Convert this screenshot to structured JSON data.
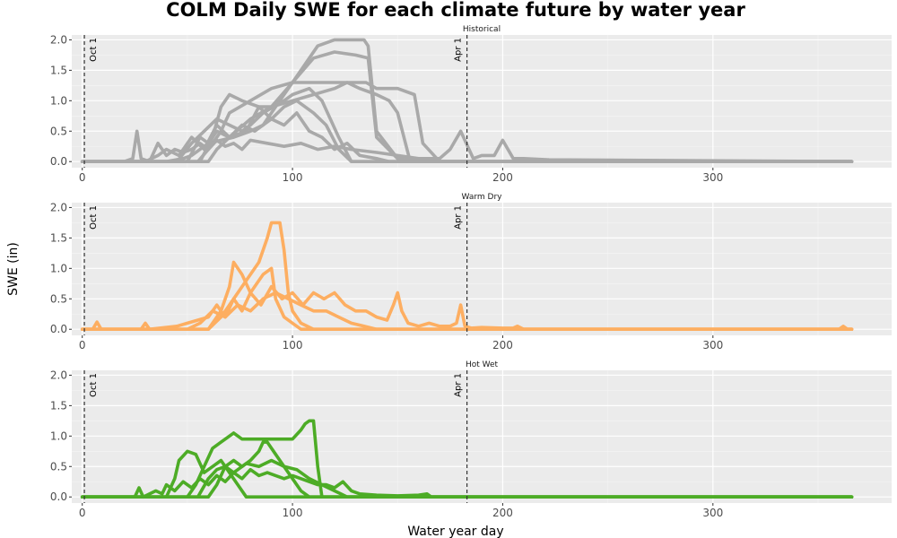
{
  "chart_data": {
    "type": "line",
    "title": "COLM Daily SWE for each climate future by water year",
    "xlabel": "Water year day",
    "ylabel": "SWE (in)",
    "xlim": [
      -5,
      385
    ],
    "ylim": [
      -0.1,
      2.08
    ],
    "x_ticks": [
      0,
      100,
      200,
      300
    ],
    "y_ticks": [
      "0.0",
      "0.5",
      "1.0",
      "1.5",
      "2.0"
    ],
    "grid": true,
    "vlines": [
      {
        "x": 1,
        "label": "Oct 1"
      },
      {
        "x": 183,
        "label": "Apr 1"
      }
    ],
    "panels": [
      {
        "strip": "Historical",
        "color": "#a9a9a9",
        "series": [
          {
            "x": [
              0,
              40,
              48,
              52,
              56,
              60,
              66,
              72,
              80,
              86,
              90,
              96,
              104,
              112,
              120,
              130,
              134,
              136,
              140,
              150,
              160,
              170,
              180,
              185,
              200,
              366
            ],
            "y": [
              0,
              0,
              0.05,
              0.1,
              0.2,
              0.3,
              0.35,
              0.4,
              0.5,
              0.6,
              0.8,
              1.1,
              1.5,
              1.9,
              2.0,
              2.0,
              2.0,
              1.9,
              0.5,
              0.05,
              0,
              0,
              0,
              0,
              0,
              0
            ]
          },
          {
            "x": [
              0,
              60,
              64,
              70,
              80,
              90,
              100,
              110,
              120,
              130,
              136,
              140,
              150,
              160,
              366
            ],
            "y": [
              0,
              0,
              0.2,
              0.4,
              0.7,
              0.9,
              1.3,
              1.7,
              1.8,
              1.75,
              1.7,
              0.4,
              0.05,
              0,
              0
            ]
          },
          {
            "x": [
              0,
              55,
              60,
              66,
              70,
              80,
              90,
              100,
              110,
              120,
              130,
              135,
              140,
              150,
              158,
              162,
              170,
              366
            ],
            "y": [
              0,
              0,
              0.2,
              0.5,
              0.8,
              1.0,
              1.2,
              1.3,
              1.3,
              1.3,
              1.3,
              1.3,
              1.2,
              1.2,
              1.1,
              0.3,
              0,
              0
            ]
          },
          {
            "x": [
              0,
              56,
              62,
              66,
              70,
              76,
              84,
              90,
              100,
              110,
              120,
              126,
              132,
              140,
              146,
              150,
              156,
              366
            ],
            "y": [
              0,
              0,
              0.4,
              0.9,
              1.1,
              1.0,
              0.9,
              0.9,
              1.0,
              1.1,
              1.2,
              1.3,
              1.2,
              1.1,
              1.0,
              0.8,
              0,
              0
            ]
          },
          {
            "x": [
              0,
              45,
              52,
              58,
              64,
              70,
              76,
              80,
              86,
              96,
              100,
              108,
              114,
              118,
              122,
              128,
              366
            ],
            "y": [
              0,
              0,
              0.3,
              0.5,
              0.7,
              0.6,
              0.5,
              0.6,
              0.8,
              1.0,
              1.1,
              1.2,
              1.0,
              0.7,
              0.4,
              0,
              0
            ]
          },
          {
            "x": [
              0,
              50,
              56,
              60,
              64,
              70,
              76,
              82,
              90,
              96,
              102,
              110,
              116,
              122,
              128,
              366
            ],
            "y": [
              0,
              0,
              0.4,
              0.3,
              0.5,
              0.4,
              0.6,
              0.5,
              0.7,
              0.9,
              1.0,
              0.8,
              0.6,
              0.2,
              0,
              0
            ]
          },
          {
            "x": [
              0,
              20,
              24,
              26,
              28,
              32,
              36,
              40,
              44,
              48,
              52,
              56,
              60,
              64,
              68,
              72,
              76,
              80,
              88,
              96,
              104,
              112,
              120,
              128,
              140,
              150,
              160,
              170,
              175,
              180,
              186,
              190,
              196,
              200,
              205,
              210,
              222,
              366
            ],
            "y": [
              0,
              0,
              0.05,
              0.5,
              0.05,
              0,
              0.3,
              0.1,
              0.2,
              0.15,
              0.2,
              0.3,
              0.2,
              0.35,
              0.25,
              0.3,
              0.2,
              0.35,
              0.3,
              0.25,
              0.3,
              0.2,
              0.25,
              0.2,
              0.15,
              0.1,
              0.05,
              0.05,
              0.2,
              0.5,
              0.05,
              0.1,
              0.1,
              0.35,
              0.05,
              0.05,
              0.03,
              0
            ]
          },
          {
            "x": [
              0,
              30,
              36,
              40,
              46,
              52,
              58,
              64,
              70,
              78,
              84,
              90,
              96,
              102,
              108,
              114,
              120,
              126,
              132,
              140,
              146,
              366
            ],
            "y": [
              0,
              0,
              0.1,
              0.2,
              0.1,
              0.4,
              0.2,
              0.6,
              0.4,
              0.5,
              0.9,
              0.7,
              0.6,
              0.8,
              0.5,
              0.4,
              0.2,
              0.3,
              0.1,
              0.05,
              0,
              0
            ]
          }
        ]
      },
      {
        "strip": "Warm Dry",
        "color": "#fdae61",
        "series": [
          {
            "x": [
              0,
              60,
              66,
              72,
              78,
              84,
              88,
              90,
              94,
              96,
              98,
              100,
              104,
              110,
              366
            ],
            "y": [
              0,
              0,
              0.2,
              0.5,
              0.8,
              1.1,
              1.5,
              1.75,
              1.75,
              1.3,
              0.6,
              0.3,
              0.1,
              0,
              0
            ]
          },
          {
            "x": [
              0,
              60,
              66,
              70,
              72,
              76,
              80,
              84,
              86,
              90,
              92,
              96,
              100,
              104,
              366
            ],
            "y": [
              0,
              0,
              0.3,
              0.7,
              1.1,
              0.9,
              0.6,
              0.8,
              0.9,
              1.0,
              0.5,
              0.2,
              0.1,
              0,
              0
            ]
          },
          {
            "x": [
              0,
              5,
              7,
              9,
              28,
              30,
              32,
              45,
              50,
              55,
              60,
              64,
              68,
              72,
              76,
              80,
              85,
              90,
              95,
              100,
              105,
              110,
              115,
              120,
              125,
              130,
              135,
              140,
              145,
              148,
              150,
              152,
              155,
              160,
              165,
              170,
              175,
              178,
              180,
              182,
              185,
              190,
              200,
              205,
              207,
              210,
              220,
              360,
              362,
              364,
              366
            ],
            "y": [
              0,
              0,
              0.12,
              0,
              0,
              0.1,
              0,
              0.05,
              0.1,
              0.15,
              0.2,
              0.4,
              0.2,
              0.5,
              0.3,
              0.6,
              0.4,
              0.7,
              0.5,
              0.6,
              0.4,
              0.6,
              0.5,
              0.6,
              0.4,
              0.3,
              0.3,
              0.2,
              0.15,
              0.4,
              0.6,
              0.3,
              0.1,
              0.05,
              0.1,
              0.05,
              0.05,
              0.1,
              0.4,
              0.05,
              0.02,
              0.03,
              0.02,
              0.02,
              0.05,
              0,
              0,
              0,
              0.05,
              0,
              0
            ]
          },
          {
            "x": [
              0,
              50,
              56,
              62,
              68,
              74,
              80,
              86,
              92,
              98,
              104,
              110,
              116,
              122,
              128,
              134,
              140,
              366
            ],
            "y": [
              0,
              0,
              0.1,
              0.3,
              0.2,
              0.4,
              0.3,
              0.5,
              0.6,
              0.5,
              0.4,
              0.3,
              0.3,
              0.2,
              0.1,
              0.05,
              0,
              0
            ]
          }
        ]
      },
      {
        "strip": "Hot Wet",
        "color": "#4dac26",
        "series": [
          {
            "x": [
              0,
              50,
              54,
              58,
              62,
              66,
              70,
              72,
              76,
              80,
              84,
              88,
              92,
              96,
              100,
              104,
              106,
              108,
              110,
              112,
              114,
              366
            ],
            "y": [
              0,
              0,
              0.2,
              0.5,
              0.8,
              0.9,
              1.0,
              1.05,
              0.95,
              0.95,
              0.95,
              0.95,
              0.95,
              0.95,
              0.95,
              1.1,
              1.2,
              1.25,
              1.25,
              0.5,
              0,
              0
            ]
          },
          {
            "x": [
              0,
              40,
              44,
              46,
              50,
              54,
              58,
              62,
              66,
              70,
              74,
              78,
              366
            ],
            "y": [
              0,
              0,
              0.3,
              0.6,
              0.75,
              0.7,
              0.4,
              0.5,
              0.6,
              0.4,
              0.2,
              0,
              0
            ]
          },
          {
            "x": [
              0,
              60,
              64,
              68,
              72,
              76,
              80,
              84,
              86,
              88,
              92,
              96,
              100,
              104,
              108,
              366
            ],
            "y": [
              0,
              0,
              0.2,
              0.5,
              0.6,
              0.5,
              0.6,
              0.75,
              0.9,
              0.9,
              0.7,
              0.5,
              0.3,
              0.1,
              0,
              0
            ]
          },
          {
            "x": [
              0,
              25,
              27,
              29,
              35,
              38,
              40,
              44,
              48,
              52,
              56,
              60,
              64,
              68,
              72,
              76,
              80,
              84,
              88,
              92,
              96,
              100,
              104,
              108,
              112,
              116,
              120,
              124,
              128,
              132,
              140,
              150,
              160,
              164,
              166,
              366
            ],
            "y": [
              0,
              0,
              0.15,
              0,
              0.1,
              0.05,
              0.2,
              0.1,
              0.25,
              0.15,
              0.3,
              0.2,
              0.35,
              0.25,
              0.4,
              0.3,
              0.45,
              0.35,
              0.4,
              0.35,
              0.3,
              0.35,
              0.3,
              0.25,
              0.2,
              0.2,
              0.15,
              0.25,
              0.1,
              0.05,
              0.03,
              0.02,
              0.03,
              0.05,
              0,
              0
            ]
          },
          {
            "x": [
              0,
              55,
              60,
              64,
              68,
              72,
              78,
              84,
              90,
              96,
              102,
              108,
              114,
              120,
              126,
              366
            ],
            "y": [
              0,
              0,
              0.3,
              0.45,
              0.5,
              0.4,
              0.55,
              0.5,
              0.6,
              0.5,
              0.45,
              0.3,
              0.2,
              0.1,
              0,
              0
            ]
          }
        ]
      }
    ]
  }
}
